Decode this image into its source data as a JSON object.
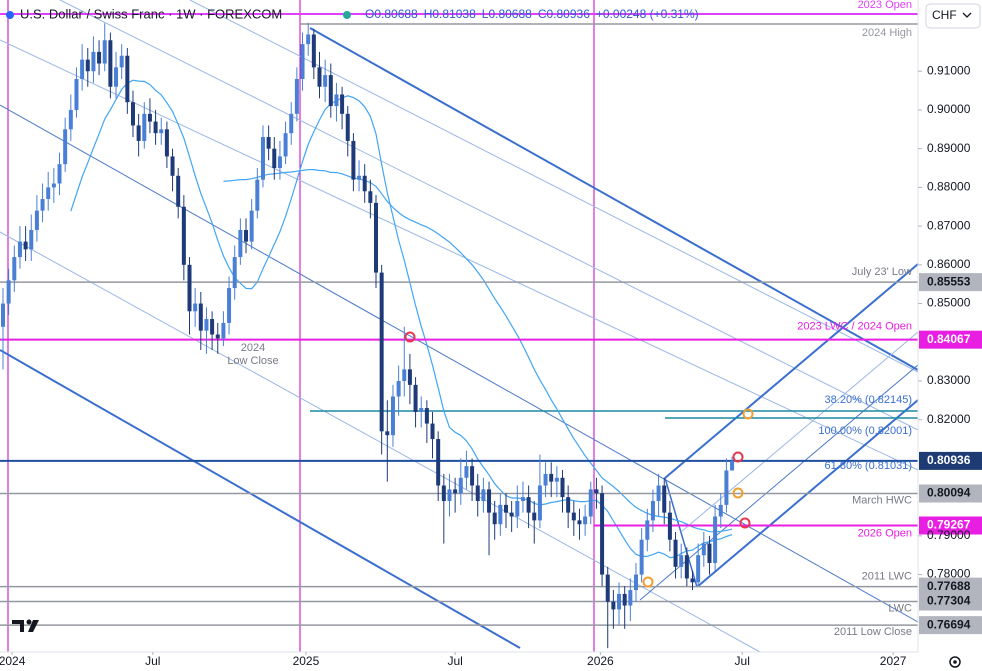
{
  "chart_data": {
    "type": "candlestick",
    "title": "U.S. Dollar / Swiss Franc · 1W · FOREXCOM",
    "header_values": [
      "O0.80688",
      "H0.81038",
      "L0.80688",
      "C0.80936",
      "+0.00248 (+0.31%)"
    ],
    "currency": "CHF",
    "up_color": "#4a7fd6",
    "down_color": "#1e3a78",
    "open": [
      0.844,
      0.85,
      0.856,
      0.862,
      0.866,
      0.864,
      0.869,
      0.874,
      0.877,
      0.88,
      0.881,
      0.886,
      0.895,
      0.9,
      0.908,
      0.913,
      0.91,
      0.915,
      0.912,
      0.918,
      0.906,
      0.911,
      0.914,
      0.902,
      0.896,
      0.892,
      0.899,
      0.897,
      0.894,
      0.895,
      0.888,
      0.883,
      0.875,
      0.86,
      0.848,
      0.85,
      0.843,
      0.846,
      0.842,
      0.841,
      0.845,
      0.854,
      0.862,
      0.869,
      0.866,
      0.874,
      0.882,
      0.893,
      0.89,
      0.885,
      0.888,
      0.894,
      0.899,
      0.908,
      0.917,
      0.9195,
      0.911,
      0.906,
      0.909,
      0.901,
      0.904,
      0.899,
      0.892,
      0.882,
      0.883,
      0.879,
      0.876,
      0.858,
      0.817,
      0.816,
      0.826,
      0.83,
      0.833,
      0.829,
      0.822,
      0.823,
      0.819,
      0.815,
      0.803,
      0.799,
      0.802,
      0.801,
      0.805,
      0.808,
      0.803,
      0.799,
      0.802,
      0.796,
      0.793,
      0.798,
      0.796,
      0.795,
      0.799,
      0.8,
      0.796,
      0.794,
      0.803,
      0.806,
      0.804,
      0.805,
      0.8,
      0.796,
      0.794,
      0.793,
      0.795,
      0.802,
      0.801,
      0.78,
      0.773,
      0.771,
      0.775,
      0.772,
      0.776,
      0.78,
      0.789,
      0.794,
      0.799,
      0.803,
      0.796,
      0.789,
      0.782,
      0.785,
      0.779,
      0.778,
      0.785,
      0.788,
      0.783,
      0.795,
      0.798,
      0.80688
    ],
    "high": [
      0.854,
      0.859,
      0.865,
      0.87,
      0.87,
      0.873,
      0.878,
      0.881,
      0.884,
      0.885,
      0.889,
      0.898,
      0.904,
      0.911,
      0.917,
      0.916,
      0.919,
      0.918,
      0.9224,
      0.92,
      0.915,
      0.917,
      0.916,
      0.905,
      0.899,
      0.902,
      0.903,
      0.9,
      0.898,
      0.897,
      0.89,
      0.885,
      0.878,
      0.862,
      0.854,
      0.853,
      0.849,
      0.848,
      0.845,
      0.848,
      0.857,
      0.865,
      0.872,
      0.872,
      0.877,
      0.885,
      0.896,
      0.896,
      0.893,
      0.892,
      0.897,
      0.902,
      0.911,
      0.92,
      0.9225,
      0.921,
      0.915,
      0.913,
      0.912,
      0.907,
      0.906,
      0.901,
      0.894,
      0.887,
      0.886,
      0.882,
      0.878,
      0.86,
      0.825,
      0.829,
      0.834,
      0.844,
      0.837,
      0.831,
      0.826,
      0.825,
      0.822,
      0.817,
      0.806,
      0.806,
      0.805,
      0.81,
      0.812,
      0.81,
      0.806,
      0.805,
      0.804,
      0.799,
      0.801,
      0.801,
      0.799,
      0.803,
      0.804,
      0.803,
      0.799,
      0.811,
      0.809,
      0.809,
      0.808,
      0.807,
      0.803,
      0.799,
      0.797,
      0.798,
      0.804,
      0.805,
      0.803,
      0.782,
      0.776,
      0.778,
      0.777,
      0.779,
      0.783,
      0.792,
      0.797,
      0.802,
      0.806,
      0.805,
      0.799,
      0.791,
      0.788,
      0.787,
      0.781,
      0.788,
      0.791,
      0.79,
      0.798,
      0.801,
      0.81,
      0.81038
    ],
    "low": [
      0.833,
      0.847,
      0.853,
      0.859,
      0.861,
      0.861,
      0.866,
      0.871,
      0.874,
      0.876,
      0.878,
      0.884,
      0.892,
      0.898,
      0.905,
      0.906,
      0.907,
      0.909,
      0.91,
      0.903,
      0.903,
      0.908,
      0.899,
      0.893,
      0.888,
      0.89,
      0.894,
      0.891,
      0.891,
      0.885,
      0.879,
      0.872,
      0.856,
      0.842,
      0.844,
      0.838,
      0.837,
      0.838,
      0.837,
      0.839,
      0.842,
      0.851,
      0.86,
      0.863,
      0.864,
      0.872,
      0.88,
      0.887,
      0.882,
      0.882,
      0.886,
      0.891,
      0.897,
      0.905,
      0.914,
      0.908,
      0.903,
      0.902,
      0.898,
      0.897,
      0.895,
      0.888,
      0.879,
      0.879,
      0.876,
      0.872,
      0.854,
      0.811,
      0.804,
      0.813,
      0.821,
      0.826,
      0.824,
      0.818,
      0.818,
      0.814,
      0.81,
      0.799,
      0.788,
      0.795,
      0.796,
      0.798,
      0.802,
      0.799,
      0.795,
      0.796,
      0.785,
      0.789,
      0.79,
      0.792,
      0.791,
      0.792,
      0.796,
      0.792,
      0.788,
      0.792,
      0.8,
      0.8,
      0.8,
      0.796,
      0.792,
      0.79,
      0.789,
      0.79,
      0.793,
      0.797,
      0.777,
      0.761,
      0.766,
      0.767,
      0.766,
      0.768,
      0.773,
      0.778,
      0.786,
      0.791,
      0.795,
      0.793,
      0.786,
      0.779,
      0.779,
      0.777,
      0.776,
      0.777,
      0.782,
      0.78,
      0.781,
      0.792,
      0.796,
      0.80688
    ],
    "close": [
      0.85,
      0.856,
      0.862,
      0.866,
      0.864,
      0.869,
      0.874,
      0.877,
      0.88,
      0.881,
      0.886,
      0.895,
      0.9,
      0.908,
      0.913,
      0.91,
      0.915,
      0.912,
      0.918,
      0.906,
      0.911,
      0.914,
      0.902,
      0.896,
      0.892,
      0.899,
      0.897,
      0.894,
      0.895,
      0.888,
      0.883,
      0.875,
      0.86,
      0.848,
      0.85,
      0.843,
      0.846,
      0.842,
      0.841,
      0.845,
      0.854,
      0.862,
      0.869,
      0.866,
      0.874,
      0.882,
      0.893,
      0.89,
      0.885,
      0.888,
      0.894,
      0.899,
      0.908,
      0.917,
      0.9195,
      0.911,
      0.906,
      0.909,
      0.901,
      0.904,
      0.899,
      0.892,
      0.882,
      0.883,
      0.879,
      0.876,
      0.858,
      0.817,
      0.816,
      0.826,
      0.83,
      0.833,
      0.829,
      0.822,
      0.823,
      0.819,
      0.815,
      0.803,
      0.799,
      0.802,
      0.801,
      0.805,
      0.808,
      0.803,
      0.799,
      0.802,
      0.796,
      0.793,
      0.798,
      0.796,
      0.795,
      0.799,
      0.8,
      0.796,
      0.794,
      0.803,
      0.806,
      0.804,
      0.805,
      0.8,
      0.796,
      0.794,
      0.793,
      0.795,
      0.802,
      0.801,
      0.78,
      0.773,
      0.771,
      0.775,
      0.772,
      0.776,
      0.78,
      0.789,
      0.794,
      0.799,
      0.803,
      0.796,
      0.789,
      0.782,
      0.785,
      0.779,
      0.778,
      0.785,
      0.788,
      0.783,
      0.795,
      0.798,
      0.80688,
      0.80936
    ],
    "ylim": [
      0.76,
      0.9284
    ],
    "yticks": [
      {
        "value": 0.78,
        "label": "0.78000"
      },
      {
        "value": 0.79,
        "label": "0.79000"
      },
      {
        "value": 0.82,
        "label": "0.82000"
      },
      {
        "value": 0.83,
        "label": "0.83000"
      },
      {
        "value": 0.85,
        "label": "0.85000"
      },
      {
        "value": 0.86,
        "label": "0.86000"
      },
      {
        "value": 0.87,
        "label": "0.87000"
      },
      {
        "value": 0.88,
        "label": "0.88000"
      },
      {
        "value": 0.89,
        "label": "0.89000"
      },
      {
        "value": 0.9,
        "label": "0.90000"
      },
      {
        "value": 0.91,
        "label": "0.91000"
      }
    ],
    "xlim": [
      -0.53,
      161.9
    ],
    "xticks": [
      {
        "value": 1.6,
        "label": "2024"
      },
      {
        "value": 26.5,
        "label": "Jul"
      },
      {
        "value": 53.6,
        "label": "2025"
      },
      {
        "value": 80,
        "label": "Jul"
      },
      {
        "value": 105.7,
        "label": "2026"
      },
      {
        "value": 130.8,
        "label": "Jul"
      },
      {
        "value": 157.5,
        "label": "2027"
      }
    ],
    "reference_lines": [
      {
        "value": 0.9248,
        "note": "2023 Open",
        "color": "#e040fb"
      },
      {
        "value": 0.9222,
        "note": "2024 High",
        "color": "#9598a1"
      }
    ],
    "levels": [
      {
        "value": 0.85553,
        "note": "July 23' Low",
        "color": "#9598a1"
      },
      {
        "value": 0.84067,
        "note": "2023 LWC / 2024 Open",
        "color": "#e91ee3"
      },
      {
        "value": 0.80936,
        "color": "#1e4fa0"
      },
      {
        "value": 0.80094,
        "note": "March HWC",
        "color": "#9598a1"
      },
      {
        "value": 0.79267,
        "note": "2026 Open",
        "color": "#e91ee3"
      },
      {
        "value": 0.77688,
        "note": "2011 LWC",
        "color": "#9598a1"
      },
      {
        "value": 0.77304,
        "note": "LWC",
        "color": "#9598a1"
      },
      {
        "value": 0.76694,
        "note": "2011 Low Close",
        "color": "#9598a1"
      }
    ],
    "fib_labels": [
      "38.20% (0.82145)",
      "100.00% (0.82001)",
      "61.80% (0.81031)"
    ],
    "low_close_label": [
      "2024",
      "Low Close"
    ]
  }
}
